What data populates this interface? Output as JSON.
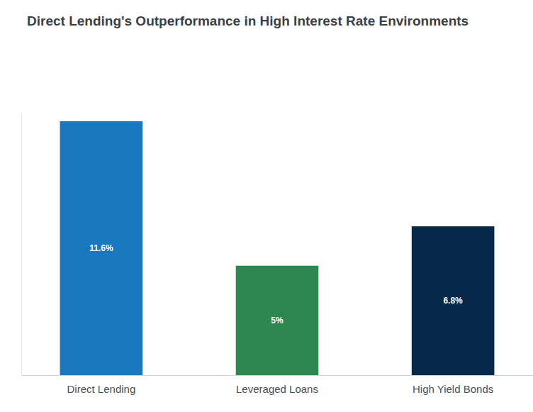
{
  "chart_data": {
    "type": "bar",
    "title": "Direct Lending's Outperformance in High Interest Rate Environments",
    "categories": [
      "Direct Lending",
      "Leveraged Loans",
      "High Yield Bonds"
    ],
    "values": [
      11.6,
      5,
      6.8
    ],
    "value_labels": [
      "11.6%",
      "5%",
      "6.8%"
    ],
    "colors": [
      "#1a78bf",
      "#2e8650",
      "#05284b"
    ],
    "ylim": [
      0,
      12
    ],
    "grid": false,
    "data_labels": true,
    "tick_labels": "x"
  }
}
